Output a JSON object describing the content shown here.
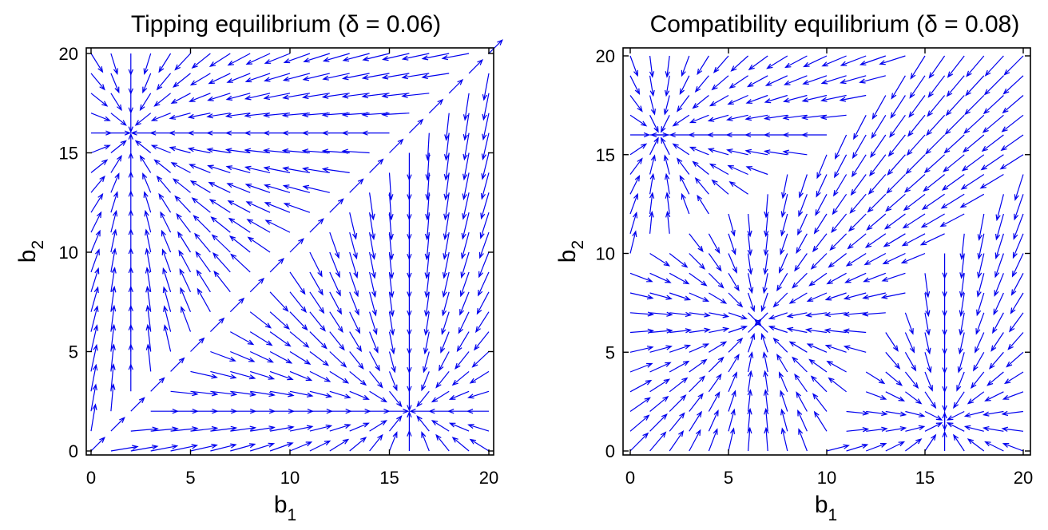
{
  "chart_data": [
    {
      "type": "quiver",
      "title": "Tipping equilibrium (δ = 0.06)",
      "xlabel": "b",
      "xlabel_sub": "1",
      "ylabel": "b",
      "ylabel_sub": "2",
      "xlim": [
        0,
        20
      ],
      "ylim": [
        0,
        20
      ],
      "xticks": [
        "0",
        "5",
        "10",
        "15",
        "20"
      ],
      "yticks": [
        "0",
        "5",
        "10",
        "15",
        "20"
      ],
      "grid": false,
      "arrow_color": "#0000ee",
      "equilibria": [
        [
          16,
          2
        ],
        [
          2,
          16
        ]
      ],
      "separatrix": "b2 = b1"
    },
    {
      "type": "quiver",
      "title": "Compatibility equilibrium (δ = 0.08)",
      "xlabel": "b",
      "xlabel_sub": "1",
      "ylabel": "b",
      "ylabel_sub": "2",
      "xlim": [
        0,
        20
      ],
      "ylim": [
        0,
        20
      ],
      "xticks": [
        "0",
        "5",
        "10",
        "15",
        "20"
      ],
      "yticks": [
        "0",
        "5",
        "10",
        "15",
        "20"
      ],
      "grid": false,
      "arrow_color": "#0000ee",
      "equilibria": [
        [
          6.5,
          6.5
        ],
        [
          16,
          1.5
        ],
        [
          1.5,
          16
        ]
      ]
    }
  ]
}
